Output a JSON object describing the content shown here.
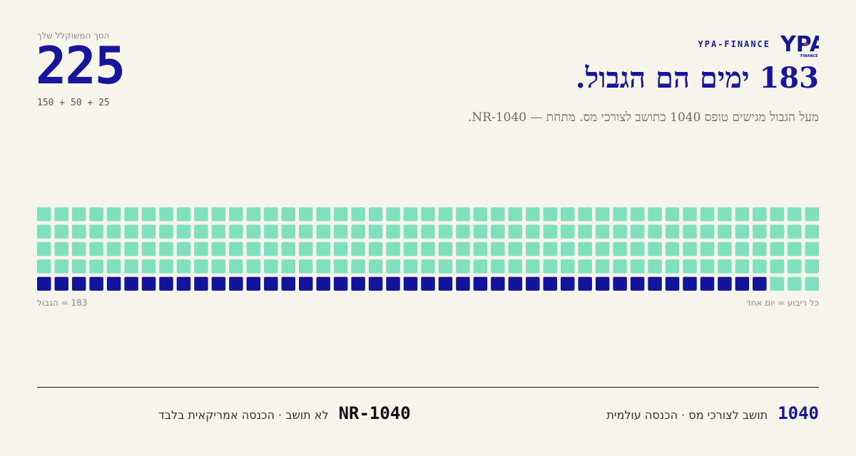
{
  "brand": {
    "name": "YPA-FINANCE",
    "logo_text": "YPA",
    "logo_subtext": "FINANCE"
  },
  "header": {
    "title": "183 ימים הם הגבול.",
    "subtitle": "מעל הגבול מגישים טופס 1040 כתושב לצורכי מס. מתחת — NR-1040."
  },
  "score": {
    "label": "הסך המשוקלל שלך",
    "value": "225",
    "formula": "150 + 50 + 25"
  },
  "grid": {
    "total_days": 225,
    "threshold_days": 183,
    "columns": 45,
    "rows": 5,
    "note_right": "כל ריבוע = יום אחד",
    "note_left": "183 = הגבול"
  },
  "colors": {
    "background": "#f7f4ec",
    "primary": "#16169b",
    "mint": "#7ee0bf",
    "navy": "#14149a"
  },
  "forms": [
    {
      "code": "1040",
      "description": "תושב לצורכי מס · הכנסה עולמית"
    },
    {
      "code": "1040-NR",
      "description": "לא תושב · הכנסה אמריקאית בלבד"
    }
  ]
}
